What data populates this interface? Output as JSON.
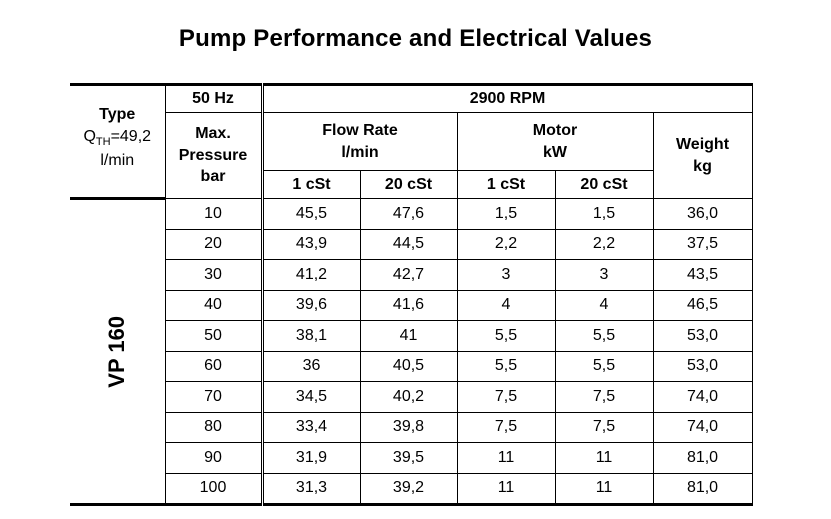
{
  "title": "Pump Performance and Electrical Values",
  "header": {
    "type_label": "Type",
    "qth_prefix": "Q",
    "qth_sub": "TH",
    "qth_value": "=49,2",
    "qth_unit": "l/min",
    "hz": "50 Hz",
    "rpm": "2900 RPM",
    "max_line1": "Max.",
    "max_line2": "Pressure",
    "max_line3": "bar",
    "flow_line1": "Flow Rate",
    "flow_line2": "l/min",
    "motor_line1": "Motor",
    "motor_line2": "kW",
    "weight_line1": "Weight",
    "weight_line2": "kg",
    "cst1": "1 cSt",
    "cst20": "20 cSt",
    "cst1_motor": "1 cSt",
    "cst20_motor": "20 cSt"
  },
  "model": "VP 160",
  "rows": [
    {
      "pressure": "10",
      "flow_1": "45,5",
      "flow_20": "47,6",
      "motor_1": "1,5",
      "motor_20": "1,5",
      "weight": "36,0"
    },
    {
      "pressure": "20",
      "flow_1": "43,9",
      "flow_20": "44,5",
      "motor_1": "2,2",
      "motor_20": "2,2",
      "weight": "37,5"
    },
    {
      "pressure": "30",
      "flow_1": "41,2",
      "flow_20": "42,7",
      "motor_1": "3",
      "motor_20": "3",
      "weight": "43,5"
    },
    {
      "pressure": "40",
      "flow_1": "39,6",
      "flow_20": "41,6",
      "motor_1": "4",
      "motor_20": "4",
      "weight": "46,5"
    },
    {
      "pressure": "50",
      "flow_1": "38,1",
      "flow_20": "41",
      "motor_1": "5,5",
      "motor_20": "5,5",
      "weight": "53,0"
    },
    {
      "pressure": "60",
      "flow_1": "36",
      "flow_20": "40,5",
      "motor_1": "5,5",
      "motor_20": "5,5",
      "weight": "53,0"
    },
    {
      "pressure": "70",
      "flow_1": "34,5",
      "flow_20": "40,2",
      "motor_1": "7,5",
      "motor_20": "7,5",
      "weight": "74,0"
    },
    {
      "pressure": "80",
      "flow_1": "33,4",
      "flow_20": "39,8",
      "motor_1": "7,5",
      "motor_20": "7,5",
      "weight": "74,0"
    },
    {
      "pressure": "90",
      "flow_1": "31,9",
      "flow_20": "39,5",
      "motor_1": "11",
      "motor_20": "11",
      "weight": "81,0"
    },
    {
      "pressure": "100",
      "flow_1": "31,3",
      "flow_20": "39,2",
      "motor_1": "11",
      "motor_20": "11",
      "weight": "81,0"
    }
  ]
}
